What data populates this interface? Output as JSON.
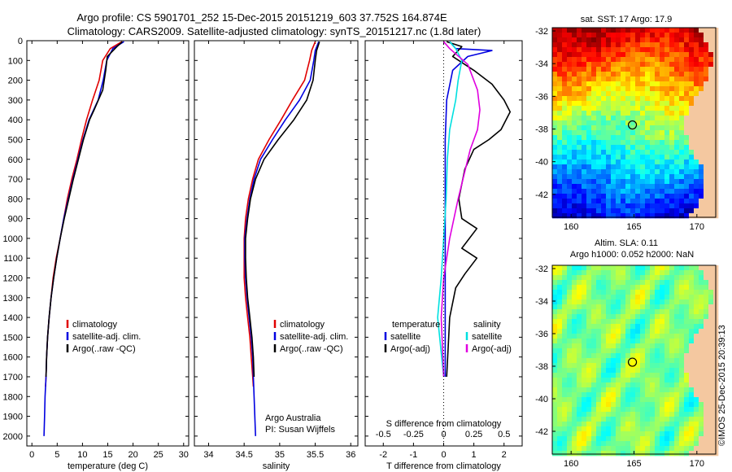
{
  "header": {
    "line1": "Argo profile: CS 5901701_252 15-Dec-2015 20151219_603 37.752S 164.874E",
    "line2": "Climatology: CARS2009. Satellite-adjusted climatology: synTS_20151217.nc (1.8d later)"
  },
  "colors": {
    "climatology": "#e00000",
    "satellite": "#0000e0",
    "argo": "#000000",
    "satellite_s": "#00e0e0",
    "argo_s": "#e000e0"
  },
  "depth_axis": {
    "ticks": [
      0,
      100,
      200,
      300,
      400,
      500,
      600,
      700,
      800,
      900,
      1000,
      1100,
      1200,
      1300,
      1400,
      1500,
      1600,
      1700,
      1800,
      1900,
      2000
    ],
    "ylim": [
      0,
      2050
    ]
  },
  "chart_data": [
    {
      "type": "line",
      "panel": "temperature",
      "xlabel": "temperature (deg C)",
      "ylabel": "",
      "xlim": [
        -1,
        31
      ],
      "xticks": [
        0,
        5,
        10,
        15,
        20,
        25,
        30
      ],
      "ylim": [
        0,
        2050
      ],
      "legend": [
        "climatology",
        "satellite-adj. clim.",
        "Argo(..raw -QC)"
      ],
      "series": [
        {
          "name": "climatology",
          "color": "#e00000",
          "points": [
            [
              17.8,
              5
            ],
            [
              15.5,
              40
            ],
            [
              14.0,
              100
            ],
            [
              13.3,
              200
            ],
            [
              12.0,
              300
            ],
            [
              10.8,
              400
            ],
            [
              9.8,
              500
            ],
            [
              8.9,
              600
            ],
            [
              7.9,
              700
            ],
            [
              7.0,
              800
            ],
            [
              6.3,
              900
            ],
            [
              5.6,
              1000
            ],
            [
              4.8,
              1100
            ],
            [
              4.2,
              1200
            ],
            [
              3.8,
              1300
            ],
            [
              3.4,
              1400
            ],
            [
              3.1,
              1500
            ],
            [
              2.9,
              1600
            ],
            [
              2.8,
              1700
            ],
            [
              2.7,
              1750
            ]
          ]
        },
        {
          "name": "satellite-adj. clim.",
          "color": "#0000e0",
          "points": [
            [
              18.2,
              5
            ],
            [
              16.0,
              40
            ],
            [
              14.8,
              100
            ],
            [
              14.1,
              200
            ],
            [
              13.1,
              300
            ],
            [
              11.3,
              400
            ],
            [
              10.1,
              500
            ],
            [
              9.1,
              600
            ],
            [
              8.1,
              700
            ],
            [
              7.2,
              800
            ],
            [
              6.3,
              900
            ],
            [
              5.6,
              1000
            ],
            [
              4.9,
              1100
            ],
            [
              4.3,
              1200
            ],
            [
              3.8,
              1300
            ],
            [
              3.4,
              1400
            ],
            [
              3.1,
              1500
            ],
            [
              2.9,
              1600
            ],
            [
              2.8,
              1700
            ],
            [
              2.6,
              1800
            ],
            [
              2.5,
              1900
            ],
            [
              2.4,
              2000
            ]
          ]
        },
        {
          "name": "Argo(..raw -QC)",
          "color": "#000000",
          "points": [
            [
              17.9,
              5
            ],
            [
              16.8,
              30
            ],
            [
              14.9,
              80
            ],
            [
              14.6,
              150
            ],
            [
              14.0,
              250
            ],
            [
              12.3,
              350
            ],
            [
              11.4,
              400
            ],
            [
              10.2,
              500
            ],
            [
              9.2,
              600
            ],
            [
              8.2,
              700
            ],
            [
              7.3,
              800
            ],
            [
              6.4,
              900
            ],
            [
              5.6,
              1000
            ],
            [
              4.9,
              1100
            ],
            [
              4.3,
              1200
            ],
            [
              3.8,
              1300
            ],
            [
              3.4,
              1400
            ],
            [
              3.1,
              1500
            ],
            [
              2.9,
              1600
            ],
            [
              2.8,
              1700
            ]
          ]
        }
      ]
    },
    {
      "type": "line",
      "panel": "salinity",
      "xlabel": "salinity",
      "ylabel": "",
      "xlim": [
        33.8,
        36.1
      ],
      "xticks": [
        34,
        34.5,
        35,
        35.5,
        36
      ],
      "ylim": [
        0,
        2050
      ],
      "legend": [
        "climatology",
        "satellite-adj. clim.",
        "Argo(..raw -QC)"
      ],
      "series": [
        {
          "name": "climatology",
          "color": "#e00000",
          "points": [
            [
              35.5,
              5
            ],
            [
              35.45,
              50
            ],
            [
              35.42,
              100
            ],
            [
              35.35,
              200
            ],
            [
              35.18,
              300
            ],
            [
              35.02,
              400
            ],
            [
              34.85,
              500
            ],
            [
              34.7,
              600
            ],
            [
              34.62,
              700
            ],
            [
              34.56,
              800
            ],
            [
              34.52,
              900
            ],
            [
              34.5,
              1000
            ],
            [
              34.5,
              1100
            ],
            [
              34.5,
              1200
            ],
            [
              34.52,
              1300
            ],
            [
              34.55,
              1400
            ],
            [
              34.58,
              1500
            ],
            [
              34.6,
              1600
            ],
            [
              34.62,
              1700
            ],
            [
              34.63,
              1750
            ]
          ]
        },
        {
          "name": "satellite-adj. clim.",
          "color": "#0000e0",
          "points": [
            [
              35.55,
              5
            ],
            [
              35.5,
              50
            ],
            [
              35.48,
              100
            ],
            [
              35.43,
              200
            ],
            [
              35.28,
              300
            ],
            [
              35.08,
              400
            ],
            [
              34.9,
              500
            ],
            [
              34.73,
              600
            ],
            [
              34.64,
              700
            ],
            [
              34.58,
              800
            ],
            [
              34.54,
              900
            ],
            [
              34.51,
              1000
            ],
            [
              34.51,
              1100
            ],
            [
              34.52,
              1200
            ],
            [
              34.54,
              1300
            ],
            [
              34.57,
              1400
            ],
            [
              34.6,
              1500
            ],
            [
              34.62,
              1600
            ],
            [
              34.63,
              1700
            ],
            [
              34.64,
              1800
            ],
            [
              34.65,
              1900
            ],
            [
              34.66,
              2000
            ]
          ]
        },
        {
          "name": "Argo(..raw -QC)",
          "color": "#000000",
          "points": [
            [
              35.56,
              5
            ],
            [
              35.52,
              50
            ],
            [
              35.5,
              100
            ],
            [
              35.47,
              200
            ],
            [
              35.38,
              300
            ],
            [
              35.2,
              400
            ],
            [
              34.98,
              500
            ],
            [
              34.78,
              600
            ],
            [
              34.66,
              700
            ],
            [
              34.59,
              800
            ],
            [
              34.55,
              900
            ],
            [
              34.52,
              1000
            ],
            [
              34.52,
              1100
            ],
            [
              34.53,
              1200
            ],
            [
              34.55,
              1300
            ],
            [
              34.58,
              1400
            ],
            [
              34.61,
              1500
            ],
            [
              34.63,
              1600
            ],
            [
              34.64,
              1700
            ]
          ]
        }
      ]
    },
    {
      "type": "line",
      "panel": "difference",
      "xlabel": "T difference from climatology",
      "toplabel": "S difference from climatology",
      "xlim": [
        -2.6,
        2.6
      ],
      "xticks": [
        -2,
        -1,
        0,
        1,
        2
      ],
      "s_xticks": [
        -0.5,
        -0.25,
        0,
        0.25,
        0.5
      ],
      "s_scale_factor": 4,
      "ylim": [
        0,
        2050
      ],
      "legend_groups": [
        {
          "title": "temperature",
          "items": [
            "satellite",
            "Argo(-adj)"
          ]
        },
        {
          "title": "salinity",
          "items": [
            "satellite",
            "Argo(-adj)"
          ]
        }
      ],
      "series": [
        {
          "name": "temperature satellite",
          "color": "#0000e0",
          "points": [
            [
              0.2,
              5
            ],
            [
              0.4,
              40
            ],
            [
              1.6,
              50
            ],
            [
              0.8,
              80
            ],
            [
              0.3,
              150
            ],
            [
              0.1,
              300
            ],
            [
              0.05,
              500
            ],
            [
              0.05,
              800
            ],
            [
              0.05,
              1100
            ],
            [
              0.05,
              1400
            ],
            [
              0.05,
              1700
            ]
          ]
        },
        {
          "name": "temperature Argo(-adj)",
          "color": "#000000",
          "points": [
            [
              0.1,
              5
            ],
            [
              0.6,
              30
            ],
            [
              0.3,
              80
            ],
            [
              1.0,
              150
            ],
            [
              1.6,
              220
            ],
            [
              2.0,
              300
            ],
            [
              2.2,
              360
            ],
            [
              1.9,
              450
            ],
            [
              1.5,
              500
            ],
            [
              1.0,
              550
            ],
            [
              0.7,
              650
            ],
            [
              0.5,
              800
            ],
            [
              0.6,
              900
            ],
            [
              1.1,
              950
            ],
            [
              0.6,
              1050
            ],
            [
              1.1,
              1100
            ],
            [
              0.7,
              1180
            ],
            [
              0.4,
              1250
            ],
            [
              0.2,
              1400
            ],
            [
              0.1,
              1700
            ]
          ]
        },
        {
          "name": "salinity satellite",
          "color": "#00e0e0",
          "points": [
            [
              0.05,
              5
            ],
            [
              0.1,
              40
            ],
            [
              0.15,
              100
            ],
            [
              0.12,
              200
            ],
            [
              0.1,
              300
            ],
            [
              0.05,
              450
            ],
            [
              0.03,
              600
            ],
            [
              0.02,
              800
            ],
            [
              0.0,
              1000
            ],
            [
              -0.02,
              1200
            ],
            [
              -0.05,
              1400
            ],
            [
              0.0,
              1700
            ]
          ]
        },
        {
          "name": "salinity Argo(-adj)",
          "color": "#e000e0",
          "points": [
            [
              0.0,
              5
            ],
            [
              0.05,
              40
            ],
            [
              0.2,
              120
            ],
            [
              0.28,
              250
            ],
            [
              0.3,
              350
            ],
            [
              0.28,
              450
            ],
            [
              0.22,
              550
            ],
            [
              0.18,
              650
            ],
            [
              0.12,
              800
            ],
            [
              0.05,
              1000
            ],
            [
              0.0,
              1200
            ],
            [
              -0.02,
              1400
            ],
            [
              0.0,
              1700
            ]
          ]
        }
      ]
    },
    {
      "type": "heatmap",
      "panel": "sst_map",
      "title": "sat. SST: 17 Argo: 17.9",
      "xlim": [
        158.5,
        171.5
      ],
      "ylim": [
        -43.4,
        -31.8
      ],
      "xticks": [
        160,
        165,
        170
      ],
      "yticks": [
        -32,
        -34,
        -36,
        -38,
        -40,
        -42
      ],
      "marker": {
        "lon": 164.874,
        "lat": -37.752
      }
    },
    {
      "type": "heatmap",
      "panel": "sla_map",
      "title": "Altim. SLA: 0.11",
      "subtitle": "Argo h1000: 0.052 h2000: NaN",
      "xlim": [
        158.5,
        171.5
      ],
      "ylim": [
        -43.4,
        -31.8
      ],
      "xticks": [
        160,
        165,
        170
      ],
      "yticks": [
        -32,
        -34,
        -36,
        -38,
        -40,
        -42
      ],
      "marker": {
        "lon": 164.874,
        "lat": -37.752
      }
    }
  ],
  "annotations": {
    "argo_australia": "Argo Australia",
    "pi": "PI: Susan Wijffels",
    "credit": "©IMOS 25-Dec-2015 20:39:13"
  }
}
